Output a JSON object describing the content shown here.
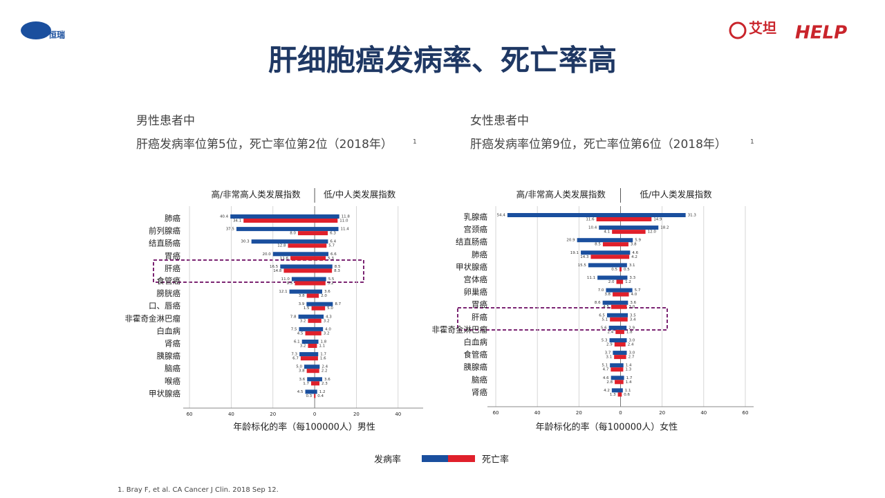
{
  "header": {
    "title": "肝细胞癌发病率、死亡率高",
    "logo_left": "恒瑞",
    "logo_mid": "艾坦",
    "logo_right": "HELP"
  },
  "legend": [
    {
      "name": "发病率",
      "color": "#1a4f9e"
    },
    {
      "name": "死亡率",
      "color": "#e0202b"
    }
  ],
  "footnote": "1. Bray F, et al. CA Cancer J Clin. 2018 Sep 12.",
  "chart_data": [
    {
      "type": "butterfly",
      "heading": "男性患者中",
      "subheading": "肝癌发病率位第5位，死亡率位第2位（2018年）",
      "ref": "1",
      "xlabel": "年龄标化的率（每100000人）男性",
      "categories": [
        "肺癌",
        "前列腺癌",
        "结直肠癌",
        "胃癌",
        "肝癌",
        "食管癌",
        "膀胱癌",
        "口、唇癌",
        "非霍奇金淋巴瘤",
        "白血病",
        "肾癌",
        "胰腺癌",
        "脑癌",
        "喉癌",
        "甲状腺癌"
      ],
      "left": {
        "label": "高/非常高人类发展指数",
        "incidence": {
          "values": [
            40.4,
            37.5,
            30.3,
            20.0,
            16.5,
            11.0,
            12.1,
            3.9,
            7.8,
            7.5,
            6.1,
            7.3,
            5.0,
            3.6,
            4.5
          ],
          "value_labels": [
            "40.4",
            "37.5",
            "30.3",
            "20.0",
            "16.5",
            "11.0",
            "12.1",
            "3.9",
            "7.8",
            "7.5",
            "6.1",
            "7.3",
            "5.0",
            "3.6",
            "4.5"
          ]
        },
        "mortality": {
          "values": [
            34.1,
            8.0,
            12.8,
            11.6,
            14.8,
            9.5,
            3.8,
            1.5,
            3.2,
            4.5,
            3.2,
            6.7,
            3.8,
            1.7,
            0.3
          ],
          "value_labels": [
            "34.1",
            "8.0",
            "12.8",
            "11.6",
            "14.8",
            "9.5",
            "3.8",
            "1.5",
            "3.2",
            "4.5",
            "3.2",
            "6.7",
            "3.8",
            "1.7",
            "0.3"
          ]
        }
      },
      "right": {
        "label": "低/中人类发展指数",
        "incidence": {
          "values": [
            11.8,
            11.4,
            6.4,
            6.6,
            8.5,
            5.5,
            3.6,
            8.7,
            4.3,
            4.0,
            1.8,
            1.7,
            2.4,
            3.6,
            1.2
          ],
          "value_labels": [
            "11.8",
            "11.4",
            "6.4",
            "6.6",
            "8.5",
            "5.5",
            "3.6",
            "8.7",
            "4.3",
            "4.0",
            "1.8",
            "1.7",
            "2.4",
            "3.6",
            "1.2"
          ]
        },
        "mortality": {
          "values": [
            11.0,
            6.3,
            5.7,
            5.3,
            8.3,
            5.2,
            2.0,
            5.0,
            3.2,
            3.2,
            1.1,
            1.6,
            2.2,
            2.3,
            0.4
          ],
          "value_labels": [
            "11.0",
            "6.3",
            "5.7",
            "5.3",
            "8.3",
            "5.2",
            "2.0",
            "5.0",
            "3.2",
            "3.2",
            "1.1",
            "1.6",
            "2.2",
            "2.3",
            "0.4"
          ]
        }
      },
      "xlim": [
        -63,
        52
      ],
      "xticks": [
        {
          "value": -60,
          "label": "60"
        },
        {
          "value": -40,
          "label": "40"
        },
        {
          "value": -20,
          "label": "20"
        },
        0,
        20,
        40
      ]
    },
    {
      "type": "butterfly",
      "heading": "女性患者中",
      "subheading": "肝癌发病率位第9位，死亡率位第6位（2018年）",
      "ref": "1",
      "xlabel": "年龄标化的率（每100000人）女性",
      "categories": [
        "乳腺癌",
        "宫颈癌",
        "结直肠癌",
        "肺癌",
        "甲状腺癌",
        "宫体癌",
        "卵巢癌",
        "胃癌",
        "肝癌",
        "非霍奇金淋巴瘤",
        "白血病",
        "食管癌",
        "胰腺癌",
        "脑癌",
        "肾癌"
      ],
      "left": {
        "label": "高/非常高人类发展指数",
        "incidence": {
          "values": [
            54.4,
            10.4,
            20.9,
            19.1,
            15.5,
            11.1,
            7.0,
            8.6,
            6.5,
            5.6,
            5.3,
            3.7,
            5.1,
            4.6,
            4.2
          ],
          "value_labels": [
            "54.4",
            "10.4",
            "20.9",
            "19.1",
            "15.5",
            "11.1",
            "7.0",
            "8.6",
            "6.5",
            "5.6",
            "5.3",
            "3.7",
            "5.1",
            "4.6",
            "4.2"
          ]
        },
        "mortality": {
          "values": [
            11.6,
            4.1,
            8.5,
            14.3,
            0.5,
            2.0,
            3.8,
            4.5,
            5.1,
            2.4,
            2.9,
            3.1,
            4.7,
            2.8,
            1.3
          ],
          "value_labels": [
            "11.6",
            "4.1",
            "8.5",
            "14.3",
            "0.5",
            "2.0",
            "3.8",
            "4.5",
            "5.1",
            "2.4",
            "2.9",
            "3.1",
            "4.7",
            "2.8",
            "1.3"
          ]
        }
      },
      "right": {
        "label": "低/中人类发展指数",
        "incidence": {
          "values": [
            31.3,
            18.2,
            5.9,
            4.6,
            3.1,
            3.3,
            5.7,
            3.6,
            3.5,
            2.9,
            3.0,
            3.0,
            1.4,
            1.7,
            1.1
          ],
          "value_labels": [
            "31.3",
            "18.2",
            "5.9",
            "4.6",
            "3.1",
            "3.3",
            "5.7",
            "3.6",
            "3.5",
            "2.9",
            "3.0",
            "3.0",
            "1.4",
            "1.7",
            "1.1"
          ]
        },
        "mortality": {
          "values": [
            14.9,
            12.0,
            3.8,
            4.2,
            0.5,
            1.2,
            4.0,
            3.0,
            3.4,
            1.8,
            2.4,
            2.7,
            1.3,
            1.4,
            0.6
          ],
          "value_labels": [
            "14.9",
            "12.0",
            "3.8",
            "4.2",
            "0.5",
            "1.2",
            "4.0",
            "3.0",
            "3.4",
            "1.8",
            "2.4",
            "2.7",
            "1.3",
            "1.4",
            "0.6"
          ]
        }
      },
      "xlim": [
        -64,
        64
      ],
      "xticks": [
        {
          "value": -60,
          "label": "60"
        },
        {
          "value": -40,
          "label": "40"
        },
        {
          "value": -20,
          "label": "20"
        },
        0,
        20,
        40,
        60
      ]
    }
  ]
}
